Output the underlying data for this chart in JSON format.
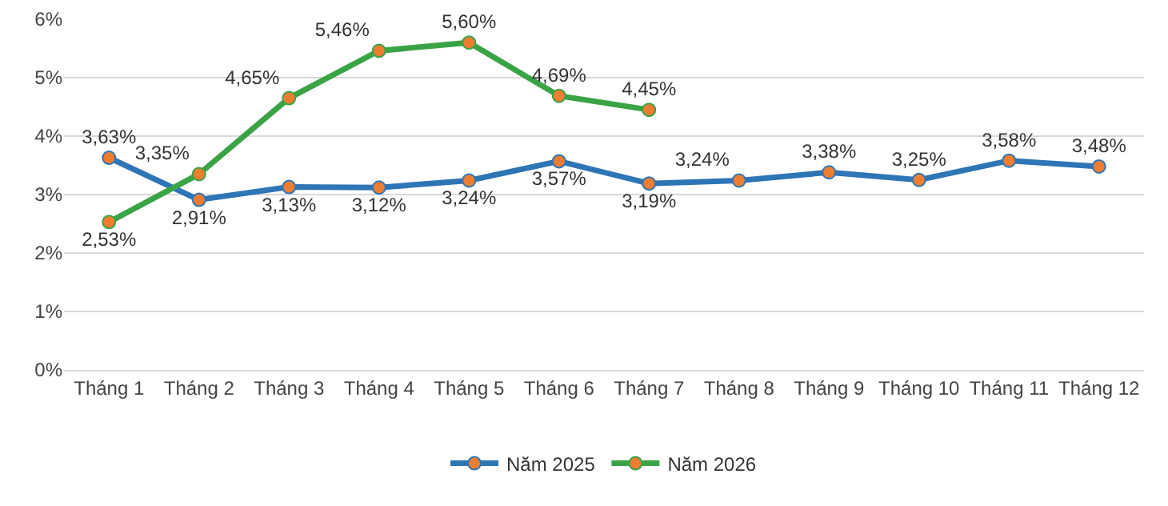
{
  "chart_data": {
    "type": "line",
    "categories": [
      "Tháng 1",
      "Tháng 2",
      "Tháng 3",
      "Tháng 4",
      "Tháng 5",
      "Tháng 6",
      "Tháng 7",
      "Tháng 8",
      "Tháng 9",
      "Tháng 10",
      "Tháng 11",
      "Tháng 12"
    ],
    "series": [
      {
        "name": "Năm 2025",
        "color": "#2e75b6",
        "values": [
          3.63,
          2.91,
          3.13,
          3.12,
          3.24,
          3.57,
          3.19,
          3.24,
          3.38,
          3.25,
          3.58,
          3.48
        ],
        "value_labels": [
          "3,63%",
          "2,91%",
          "3,13%",
          "3,12%",
          "3,24%",
          "3,57%",
          "3,19%",
          "3,24%",
          "3,38%",
          "3,25%",
          "3,58%",
          "3,48%"
        ]
      },
      {
        "name": "Năm 2026",
        "color": "#3aa346",
        "values": [
          2.53,
          3.35,
          4.65,
          5.46,
          5.6,
          4.69,
          4.45,
          null,
          null,
          null,
          null,
          null
        ],
        "value_labels": [
          "2,53%",
          "3,35%",
          "4,65%",
          "5,46%",
          "5,60%",
          "4,69%",
          "4,45%",
          null,
          null,
          null,
          null,
          null
        ]
      }
    ],
    "ylim": [
      0,
      6
    ],
    "yticks": [
      {
        "value": 0,
        "label": "0%"
      },
      {
        "value": 1,
        "label": "1%"
      },
      {
        "value": 2,
        "label": "2%"
      },
      {
        "value": 3,
        "label": "3%"
      },
      {
        "value": 4,
        "label": "4%"
      },
      {
        "value": 5,
        "label": "5%"
      },
      {
        "value": 6,
        "label": "6%"
      }
    ],
    "grid": "y",
    "legend": "bottom",
    "marker": "circle",
    "line_style": "solid"
  }
}
